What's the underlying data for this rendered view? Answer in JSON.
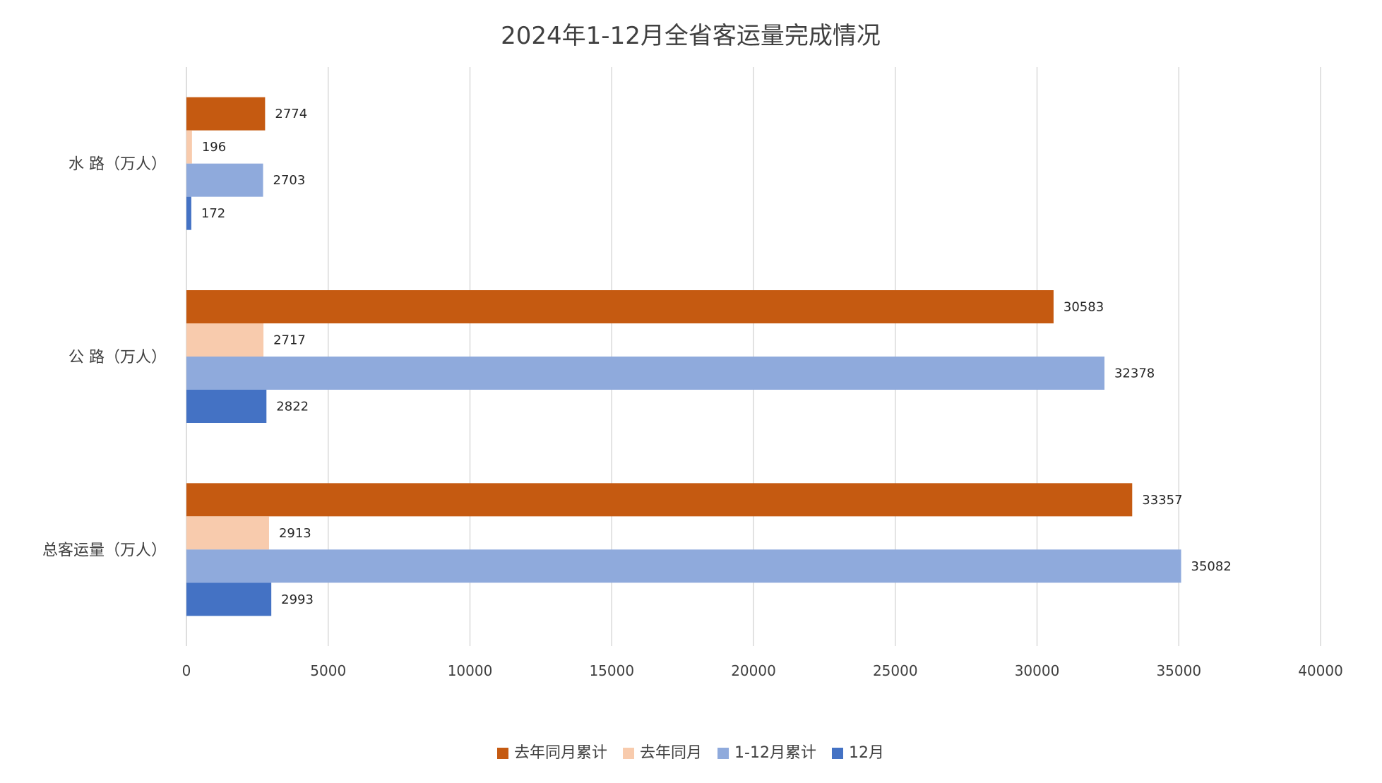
{
  "chart_data": {
    "type": "bar",
    "orientation": "horizontal",
    "title": "2024年1-12月全省客运量完成情况",
    "categories": [
      "水 路（万人）",
      "公 路（万人）",
      "总客运量（万人）"
    ],
    "series": [
      {
        "name": "去年同月累计",
        "color": "#C55A11",
        "values": [
          2774,
          30583,
          33357
        ]
      },
      {
        "name": "去年同月",
        "color": "#F8CBAD",
        "values": [
          196,
          2717,
          2913
        ]
      },
      {
        "name": "1-12月累计",
        "color": "#8FAADC",
        "values": [
          2703,
          32378,
          35082
        ]
      },
      {
        "name": "12月",
        "color": "#4472C4",
        "values": [
          172,
          2822,
          2993
        ]
      }
    ],
    "xlim": [
      0,
      40000
    ],
    "xticks": [
      0,
      5000,
      10000,
      15000,
      20000,
      25000,
      30000,
      35000,
      40000
    ],
    "grid": true,
    "legend_position": "bottom"
  }
}
